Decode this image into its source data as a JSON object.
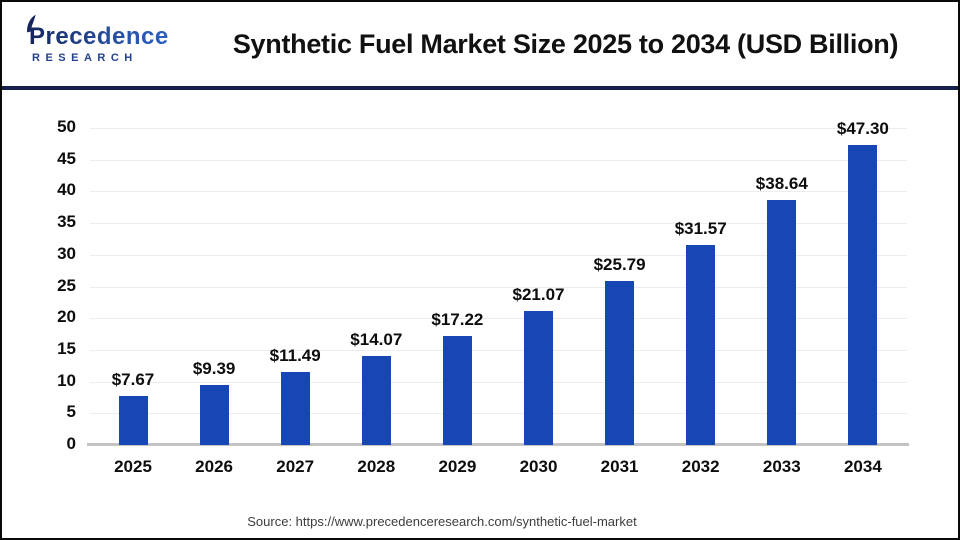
{
  "header": {
    "brand_line1": "Precedence",
    "brand_line2": "RESEARCH",
    "title": "Synthetic Fuel Market Size 2025 to 2034 (USD Billion)"
  },
  "chart_data": {
    "type": "bar",
    "title": "Synthetic Fuel Market Size 2025 to 2034 (USD Billion)",
    "categories": [
      "2025",
      "2026",
      "2027",
      "2028",
      "2029",
      "2030",
      "2031",
      "2032",
      "2033",
      "2034"
    ],
    "values": [
      7.67,
      9.39,
      11.49,
      14.07,
      17.22,
      21.07,
      25.79,
      31.57,
      38.64,
      47.3
    ],
    "value_labels": [
      "$7.67",
      "$9.39",
      "$11.49",
      "$14.07",
      "$17.22",
      "$21.07",
      "$25.79",
      "$31.57",
      "$38.64",
      "$47.30"
    ],
    "unit": "USD Billion",
    "xlabel": "",
    "ylabel": "",
    "ylim": [
      0,
      50
    ],
    "yticks": [
      0,
      5,
      10,
      15,
      20,
      25,
      30,
      35,
      40,
      45,
      50
    ],
    "grid": true,
    "legend": "none"
  },
  "footer": {
    "source": "Source: https://www.precedenceresearch.com/synthetic-fuel-market"
  },
  "colors": {
    "bar": "#1747b4",
    "divider": "#15204a",
    "grid": "#ededed",
    "baseline": "#c3c3c3",
    "text": "#0d0d0d",
    "source_text": "#3d3d3d",
    "brand_navy": "#16265c",
    "brand_blue": "#2e6bd6"
  }
}
